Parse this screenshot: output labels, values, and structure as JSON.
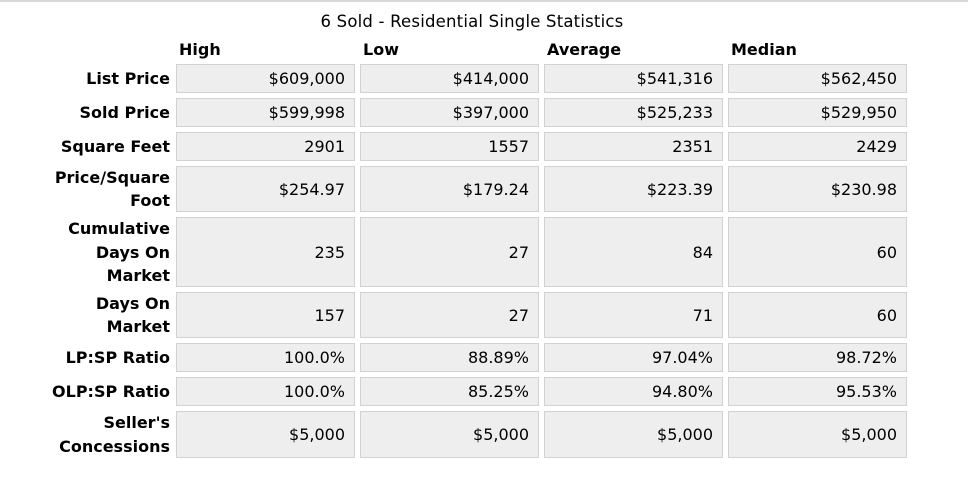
{
  "title": "6 Sold - Residential Single Statistics",
  "table": {
    "column_headers": [
      "High",
      "Low",
      "Average",
      "Median"
    ],
    "rows": [
      {
        "label": "List Price",
        "values": [
          "$609,000",
          "$414,000",
          "$541,316",
          "$562,450"
        ]
      },
      {
        "label": "Sold Price",
        "values": [
          "$599,998",
          "$397,000",
          "$525,233",
          "$529,950"
        ]
      },
      {
        "label": "Square Feet",
        "values": [
          "2901",
          "1557",
          "2351",
          "2429"
        ]
      },
      {
        "label": "Price/Square\nFoot",
        "values": [
          "$254.97",
          "$179.24",
          "$223.39",
          "$230.98"
        ]
      },
      {
        "label": "Cumulative\nDays On\nMarket",
        "values": [
          "235",
          "27",
          "84",
          "60"
        ]
      },
      {
        "label": "Days On\nMarket",
        "values": [
          "157",
          "27",
          "71",
          "60"
        ]
      },
      {
        "label": "LP:SP Ratio",
        "values": [
          "100.0%",
          "88.89%",
          "97.04%",
          "98.72%"
        ]
      },
      {
        "label": "OLP:SP Ratio",
        "values": [
          "100.0%",
          "85.25%",
          "94.80%",
          "95.53%"
        ]
      },
      {
        "label": "Seller's\nConcessions",
        "values": [
          "$5,000",
          "$5,000",
          "$5,000",
          "$5,000"
        ]
      }
    ]
  },
  "colors": {
    "page_bg": "#ffffff",
    "cell_bg": "#eeeeee",
    "cell_border": "#d2d2d2",
    "text": "#000000",
    "top_rule": "#d9d9d9"
  }
}
